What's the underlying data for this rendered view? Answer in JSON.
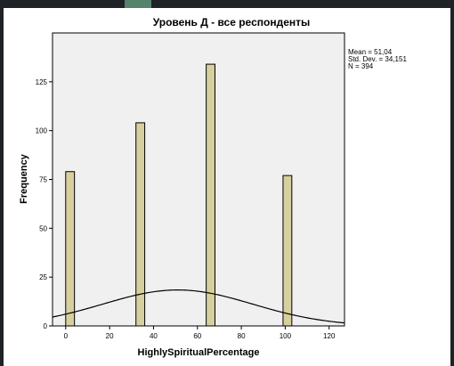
{
  "chart_data": {
    "type": "bar",
    "title": "Уровень Д - все респонденты",
    "xlabel": "HighlySpiritualPercentage",
    "ylabel": "Frequency",
    "xlim": [
      -6,
      127
    ],
    "ylim": [
      0,
      150
    ],
    "x_ticks": [
      0,
      20,
      40,
      60,
      80,
      100,
      120
    ],
    "y_ticks": [
      0,
      25,
      50,
      75,
      100,
      125
    ],
    "bins": [
      {
        "x": 2,
        "value": 79
      },
      {
        "x": 34,
        "value": 104
      },
      {
        "x": 66,
        "value": 134
      },
      {
        "x": 101,
        "value": 77
      }
    ],
    "bar_width": 4,
    "normal_curve": {
      "mean": 51.04,
      "sd": 34.151,
      "n": 394
    },
    "stats_lines": [
      "Mean = 51,04",
      "Std. Dev. = 34,151",
      "N = 394"
    ],
    "colors": {
      "bar_fill": "#d8cf9f",
      "bar_stroke": "#000000",
      "plot_bg": "#f0f0f0",
      "curve": "#000000"
    }
  }
}
